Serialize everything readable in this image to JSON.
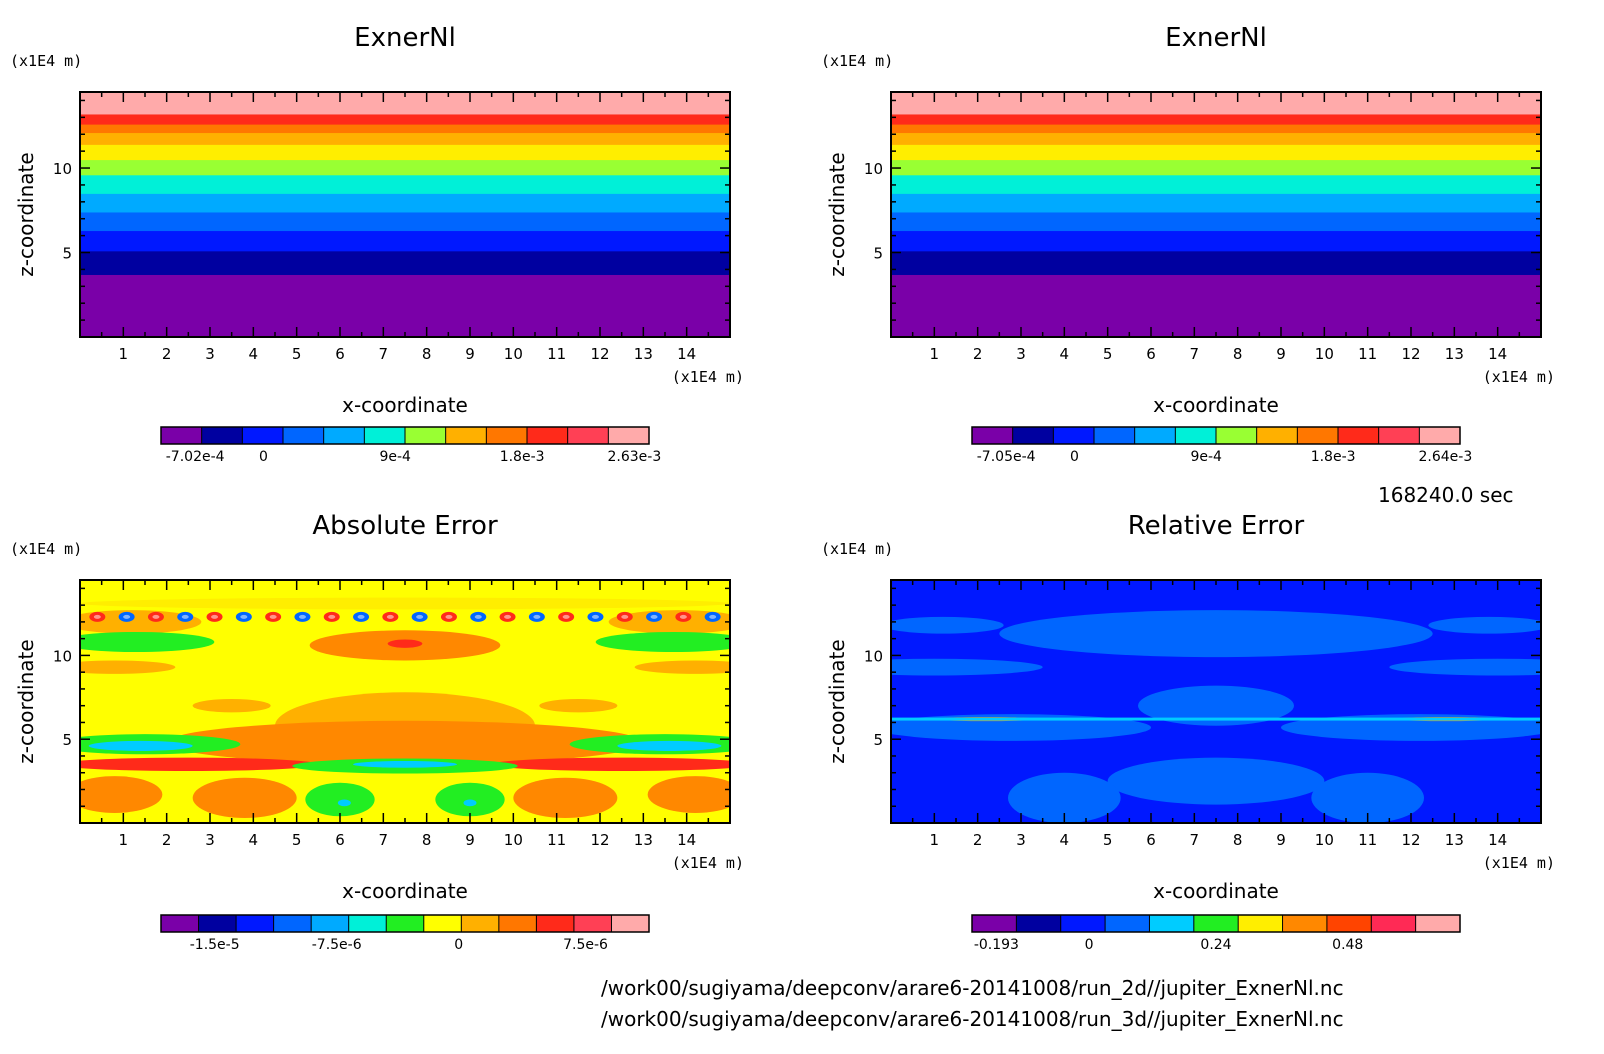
{
  "time_label": "168240.0 sec",
  "footer_lines": [
    "/work00/sugiyama/deepconv/arare6-20141008/run_2d//jupiter_ExnerNl.nc",
    "/work00/sugiyama/deepconv/arare6-20141008/run_3d//jupiter_ExnerNl.nc"
  ],
  "colors": {
    "c1": "#7a00a8",
    "c2": "#0000a0",
    "c3": "#0018ff",
    "c4": "#0066ff",
    "c5": "#00aaff",
    "c6": "#00f0d8",
    "c7": "#99ff33",
    "c8": "#ffee00",
    "c9": "#ffb000",
    "c10": "#ff7700",
    "c11": "#ff2a1a",
    "c12": "#ff4055",
    "c13": "#ffaaaa",
    "yellow": "#ffff00",
    "green": "#22ee22",
    "orange": "#ff8800"
  },
  "chart_data": [
    {
      "type": "heatmap",
      "title": "ExnerNl",
      "xlabel": "x-coordinate",
      "ylabel": "z-coordinate",
      "x_unit": "(x1E4 m)",
      "y_unit": "(x1E4 m)",
      "xlim": [
        0,
        15
      ],
      "ylim": [
        0,
        14.5
      ],
      "x_ticks": [
        1,
        2,
        3,
        4,
        5,
        6,
        7,
        8,
        9,
        10,
        11,
        12,
        13,
        14
      ],
      "y_ticks": [
        5,
        10
      ],
      "colorbar": {
        "ticks": [
          "-7.02e-4",
          "0",
          "9e-4",
          "1.8e-3",
          "2.63e-3"
        ],
        "tick_levels": [
          0.07,
          0.21,
          0.48,
          0.74,
          0.97
        ],
        "colors": [
          "#7a00a8",
          "#0000a0",
          "#0018ff",
          "#0066ff",
          "#00aaff",
          "#00f0d8",
          "#99ff33",
          "#ffb000",
          "#ff7700",
          "#ff2a1a",
          "#ff4055",
          "#ffaaaa"
        ]
      },
      "bands_z": [
        {
          "z0": 0,
          "z1": 3.7,
          "color": "#7a00a8"
        },
        {
          "z0": 3.7,
          "z1": 5.1,
          "color": "#0000a0"
        },
        {
          "z0": 5.1,
          "z1": 6.3,
          "color": "#0018ff"
        },
        {
          "z0": 6.3,
          "z1": 7.4,
          "color": "#0066ff"
        },
        {
          "z0": 7.4,
          "z1": 8.5,
          "color": "#00aaff"
        },
        {
          "z0": 8.5,
          "z1": 9.6,
          "color": "#00f0d8"
        },
        {
          "z0": 9.6,
          "z1": 10.5,
          "color": "#99ff33"
        },
        {
          "z0": 10.5,
          "z1": 11.4,
          "color": "#ffee00"
        },
        {
          "z0": 11.4,
          "z1": 12.1,
          "color": "#ffb000"
        },
        {
          "z0": 12.1,
          "z1": 12.6,
          "color": "#ff7700"
        },
        {
          "z0": 12.6,
          "z1": 13.2,
          "color": "#ff2a1a"
        },
        {
          "z0": 13.2,
          "z1": 14.5,
          "color": "#ffaaaa"
        }
      ]
    },
    {
      "type": "heatmap",
      "title": "ExnerNl",
      "xlabel": "x-coordinate",
      "ylabel": "z-coordinate",
      "x_unit": "(x1E4 m)",
      "y_unit": "(x1E4 m)",
      "xlim": [
        0,
        15
      ],
      "ylim": [
        0,
        14.5
      ],
      "x_ticks": [
        1,
        2,
        3,
        4,
        5,
        6,
        7,
        8,
        9,
        10,
        11,
        12,
        13,
        14
      ],
      "y_ticks": [
        5,
        10
      ],
      "colorbar": {
        "ticks": [
          "-7.05e-4",
          "0",
          "9e-4",
          "1.8e-3",
          "2.64e-3"
        ],
        "tick_levels": [
          0.07,
          0.21,
          0.48,
          0.74,
          0.97
        ],
        "colors": [
          "#7a00a8",
          "#0000a0",
          "#0018ff",
          "#0066ff",
          "#00aaff",
          "#00f0d8",
          "#99ff33",
          "#ffb000",
          "#ff7700",
          "#ff2a1a",
          "#ff4055",
          "#ffaaaa"
        ]
      },
      "bands_z": [
        {
          "z0": 0,
          "z1": 3.7,
          "color": "#7a00a8"
        },
        {
          "z0": 3.7,
          "z1": 5.1,
          "color": "#0000a0"
        },
        {
          "z0": 5.1,
          "z1": 6.3,
          "color": "#0018ff"
        },
        {
          "z0": 6.3,
          "z1": 7.4,
          "color": "#0066ff"
        },
        {
          "z0": 7.4,
          "z1": 8.5,
          "color": "#00aaff"
        },
        {
          "z0": 8.5,
          "z1": 9.6,
          "color": "#00f0d8"
        },
        {
          "z0": 9.6,
          "z1": 10.5,
          "color": "#99ff33"
        },
        {
          "z0": 10.5,
          "z1": 11.4,
          "color": "#ffee00"
        },
        {
          "z0": 11.4,
          "z1": 12.1,
          "color": "#ffb000"
        },
        {
          "z0": 12.1,
          "z1": 12.6,
          "color": "#ff7700"
        },
        {
          "z0": 12.6,
          "z1": 13.2,
          "color": "#ff2a1a"
        },
        {
          "z0": 13.2,
          "z1": 14.5,
          "color": "#ffaaaa"
        }
      ]
    },
    {
      "type": "heatmap",
      "title": "Absolute Error",
      "xlabel": "x-coordinate",
      "ylabel": "z-coordinate",
      "x_unit": "(x1E4 m)",
      "y_unit": "(x1E4 m)",
      "xlim": [
        0,
        15
      ],
      "ylim": [
        0,
        14.5
      ],
      "x_ticks": [
        1,
        2,
        3,
        4,
        5,
        6,
        7,
        8,
        9,
        10,
        11,
        12,
        13,
        14
      ],
      "y_ticks": [
        5,
        10
      ],
      "colorbar": {
        "ticks": [
          "-1.5e-5",
          "-7.5e-6",
          "0",
          "7.5e-6"
        ],
        "tick_levels": [
          0.11,
          0.36,
          0.61,
          0.87
        ],
        "colors": [
          "#7a00a8",
          "#0000a0",
          "#0018ff",
          "#0066ff",
          "#00aaff",
          "#00f0d8",
          "#22ee22",
          "#ffff00",
          "#ffb000",
          "#ff7700",
          "#ff2a1a",
          "#ff4055",
          "#ffaaaa"
        ]
      },
      "background": "#ffff00",
      "regions": [
        {
          "x": 7.5,
          "z": 13.1,
          "rx": 7.5,
          "rz": 0.35,
          "color": "#ffee00"
        },
        {
          "x": 1.2,
          "z": 12.0,
          "rx": 1.6,
          "rz": 0.7,
          "color": "#ffb000"
        },
        {
          "x": 13.8,
          "z": 12.0,
          "rx": 1.6,
          "rz": 0.7,
          "color": "#ffb000"
        },
        {
          "x": 1.3,
          "z": 10.8,
          "rx": 1.8,
          "rz": 0.6,
          "color": "#22ee22"
        },
        {
          "x": 13.7,
          "z": 10.8,
          "rx": 1.8,
          "rz": 0.6,
          "color": "#22ee22"
        },
        {
          "x": 7.5,
          "z": 10.6,
          "rx": 2.2,
          "rz": 0.9,
          "color": "#ff8800"
        },
        {
          "x": 7.5,
          "z": 10.7,
          "rx": 0.4,
          "rz": 0.25,
          "color": "#ff2a1a"
        },
        {
          "x": 0.8,
          "z": 9.3,
          "rx": 1.4,
          "rz": 0.4,
          "color": "#ffb000"
        },
        {
          "x": 14.2,
          "z": 9.3,
          "rx": 1.4,
          "rz": 0.4,
          "color": "#ffb000"
        },
        {
          "x": 3.5,
          "z": 7.0,
          "rx": 0.9,
          "rz": 0.4,
          "color": "#ffb000"
        },
        {
          "x": 11.5,
          "z": 7.0,
          "rx": 0.9,
          "rz": 0.4,
          "color": "#ffb000"
        },
        {
          "x": 7.5,
          "z": 5.8,
          "rx": 3.0,
          "rz": 2.0,
          "color": "#ffb000"
        },
        {
          "x": 7.5,
          "z": 4.8,
          "rx": 5.5,
          "rz": 1.3,
          "color": "#ff8800"
        },
        {
          "x": 1.5,
          "z": 4.7,
          "rx": 2.2,
          "rz": 0.6,
          "color": "#22ee22"
        },
        {
          "x": 13.5,
          "z": 4.7,
          "rx": 2.2,
          "rz": 0.6,
          "color": "#22ee22"
        },
        {
          "x": 1.4,
          "z": 4.6,
          "rx": 1.2,
          "rz": 0.3,
          "color": "#00ccff"
        },
        {
          "x": 13.6,
          "z": 4.6,
          "rx": 1.2,
          "rz": 0.3,
          "color": "#00ccff"
        },
        {
          "x": 2.5,
          "z": 3.5,
          "rx": 3.0,
          "rz": 0.4,
          "color": "#ff2a1a"
        },
        {
          "x": 12.5,
          "z": 3.5,
          "rx": 3.0,
          "rz": 0.4,
          "color": "#ff2a1a"
        },
        {
          "x": 7.5,
          "z": 3.4,
          "rx": 2.6,
          "rz": 0.45,
          "color": "#22ee22"
        },
        {
          "x": 7.5,
          "z": 3.5,
          "rx": 1.2,
          "rz": 0.2,
          "color": "#00ccff"
        },
        {
          "x": 0.8,
          "z": 1.7,
          "rx": 1.1,
          "rz": 1.1,
          "color": "#ff8800"
        },
        {
          "x": 14.2,
          "z": 1.7,
          "rx": 1.1,
          "rz": 1.1,
          "color": "#ff8800"
        },
        {
          "x": 3.8,
          "z": 1.5,
          "rx": 1.2,
          "rz": 1.2,
          "color": "#ff8800"
        },
        {
          "x": 11.2,
          "z": 1.5,
          "rx": 1.2,
          "rz": 1.2,
          "color": "#ff8800"
        },
        {
          "x": 6.0,
          "z": 1.4,
          "rx": 0.8,
          "rz": 1.0,
          "color": "#22ee22"
        },
        {
          "x": 9.0,
          "z": 1.4,
          "rx": 0.8,
          "rz": 1.0,
          "color": "#22ee22"
        },
        {
          "x": 6.1,
          "z": 1.2,
          "rx": 0.15,
          "rz": 0.2,
          "color": "#00ccff"
        },
        {
          "x": 9.0,
          "z": 1.2,
          "rx": 0.15,
          "rz": 0.2,
          "color": "#00ccff"
        },
        {
          "x": 7.5,
          "z": 1.4,
          "rx": 0.6,
          "rz": 0.9,
          "color": "#ffff00"
        }
      ],
      "dot_rows": [
        {
          "z": 12.3,
          "x_from": 0.4,
          "x_to": 14.6,
          "count": 22,
          "colors": [
            "#ff2a1a",
            "#0066ff"
          ]
        }
      ]
    },
    {
      "type": "heatmap",
      "title": "Relative Error",
      "xlabel": "x-coordinate",
      "ylabel": "z-coordinate",
      "x_unit": "(x1E4 m)",
      "y_unit": "(x1E4 m)",
      "xlim": [
        0,
        15
      ],
      "ylim": [
        0,
        14.5
      ],
      "x_ticks": [
        1,
        2,
        3,
        4,
        5,
        6,
        7,
        8,
        9,
        10,
        11,
        12,
        13,
        14
      ],
      "y_ticks": [
        5,
        10
      ],
      "colorbar": {
        "ticks": [
          "-0.193",
          "0",
          "0.24",
          "0.48"
        ],
        "tick_levels": [
          0.05,
          0.24,
          0.5,
          0.77
        ],
        "colors": [
          "#7a00a8",
          "#0000a0",
          "#0018ff",
          "#0066ff",
          "#00ccff",
          "#22ee22",
          "#ffee00",
          "#ff8800",
          "#ff4400",
          "#ff2a55",
          "#ffaaaa"
        ]
      },
      "background": "#0018ff",
      "regions": [
        {
          "x": 7.5,
          "z": 11.3,
          "rx": 5.0,
          "rz": 1.4,
          "color": "#0066ff"
        },
        {
          "x": 1.0,
          "z": 9.3,
          "rx": 2.5,
          "rz": 0.5,
          "color": "#0066ff"
        },
        {
          "x": 14.0,
          "z": 9.3,
          "rx": 2.5,
          "rz": 0.5,
          "color": "#0066ff"
        },
        {
          "x": 1.2,
          "z": 11.8,
          "rx": 1.4,
          "rz": 0.5,
          "color": "#0066ff"
        },
        {
          "x": 13.8,
          "z": 11.8,
          "rx": 1.4,
          "rz": 0.5,
          "color": "#0066ff"
        },
        {
          "x": 7.5,
          "z": 7.0,
          "rx": 1.8,
          "rz": 1.2,
          "color": "#0066ff"
        },
        {
          "x": 2.8,
          "z": 5.7,
          "rx": 3.2,
          "rz": 0.8,
          "color": "#0066ff"
        },
        {
          "x": 12.2,
          "z": 5.7,
          "rx": 3.2,
          "rz": 0.8,
          "color": "#0066ff"
        },
        {
          "x": 7.5,
          "z": 2.5,
          "rx": 2.5,
          "rz": 1.4,
          "color": "#0066ff"
        },
        {
          "x": 4.0,
          "z": 1.5,
          "rx": 1.3,
          "rz": 1.5,
          "color": "#0066ff"
        },
        {
          "x": 11.0,
          "z": 1.5,
          "rx": 1.3,
          "rz": 1.5,
          "color": "#0066ff"
        },
        {
          "x": 2.2,
          "z": 6.2,
          "rx": 1.2,
          "rz": 0.12,
          "color": "#ff8800"
        },
        {
          "x": 12.8,
          "z": 6.2,
          "rx": 1.2,
          "rz": 0.12,
          "color": "#ff8800"
        }
      ],
      "line_z": 6.2,
      "line_color": "#00ccff"
    }
  ]
}
